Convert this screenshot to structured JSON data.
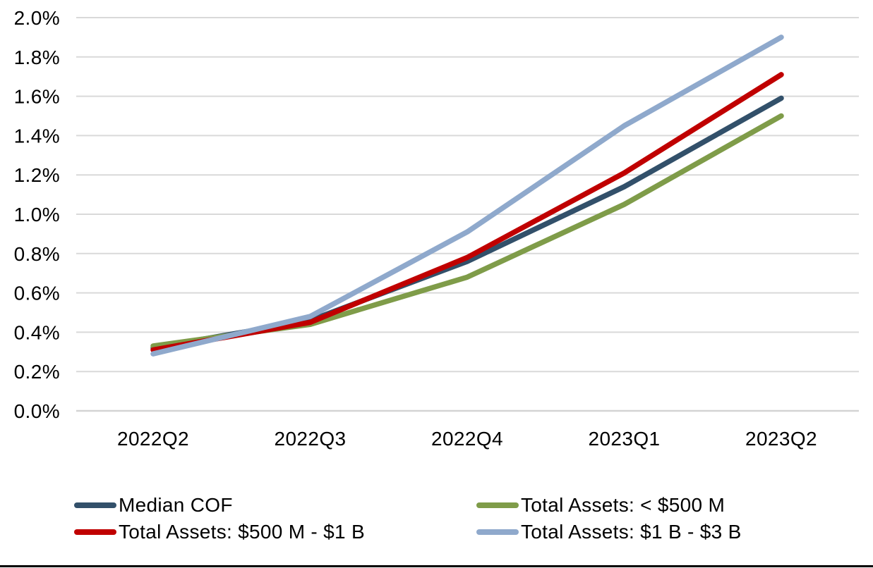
{
  "chart_data": {
    "type": "line",
    "title": "",
    "xlabel": "",
    "ylabel": "",
    "x": [
      "2022Q2",
      "2022Q3",
      "2022Q4",
      "2023Q1",
      "2023Q2"
    ],
    "series": [
      {
        "name": "Median COF",
        "color": "#32506A",
        "values": [
          0.32,
          0.46,
          0.76,
          1.14,
          1.59
        ]
      },
      {
        "name": "Total Assets: < $500 M",
        "color": "#7F9C49",
        "values": [
          0.33,
          0.44,
          0.68,
          1.05,
          1.5
        ]
      },
      {
        "name": "Total Assets: $500 M - $1 B",
        "color": "#C00000",
        "values": [
          0.31,
          0.45,
          0.78,
          1.21,
          1.71
        ]
      },
      {
        "name": "Total Assets: $1 B - $3 B",
        "color": "#8FA9CC",
        "values": [
          0.29,
          0.48,
          0.91,
          1.45,
          1.9
        ]
      }
    ],
    "ylim": [
      0,
      2.0
    ],
    "y_tick_step": 0.2,
    "y_ticks": [
      "0.0%",
      "0.2%",
      "0.4%",
      "0.6%",
      "0.8%",
      "1.0%",
      "1.2%",
      "1.4%",
      "1.6%",
      "1.8%",
      "2.0%"
    ],
    "grid": "horizontal",
    "legend_position": "bottom",
    "gridline_color": "#D9D9D9",
    "axis_line_color": "#D3D3D3",
    "text_color": "#000000"
  }
}
